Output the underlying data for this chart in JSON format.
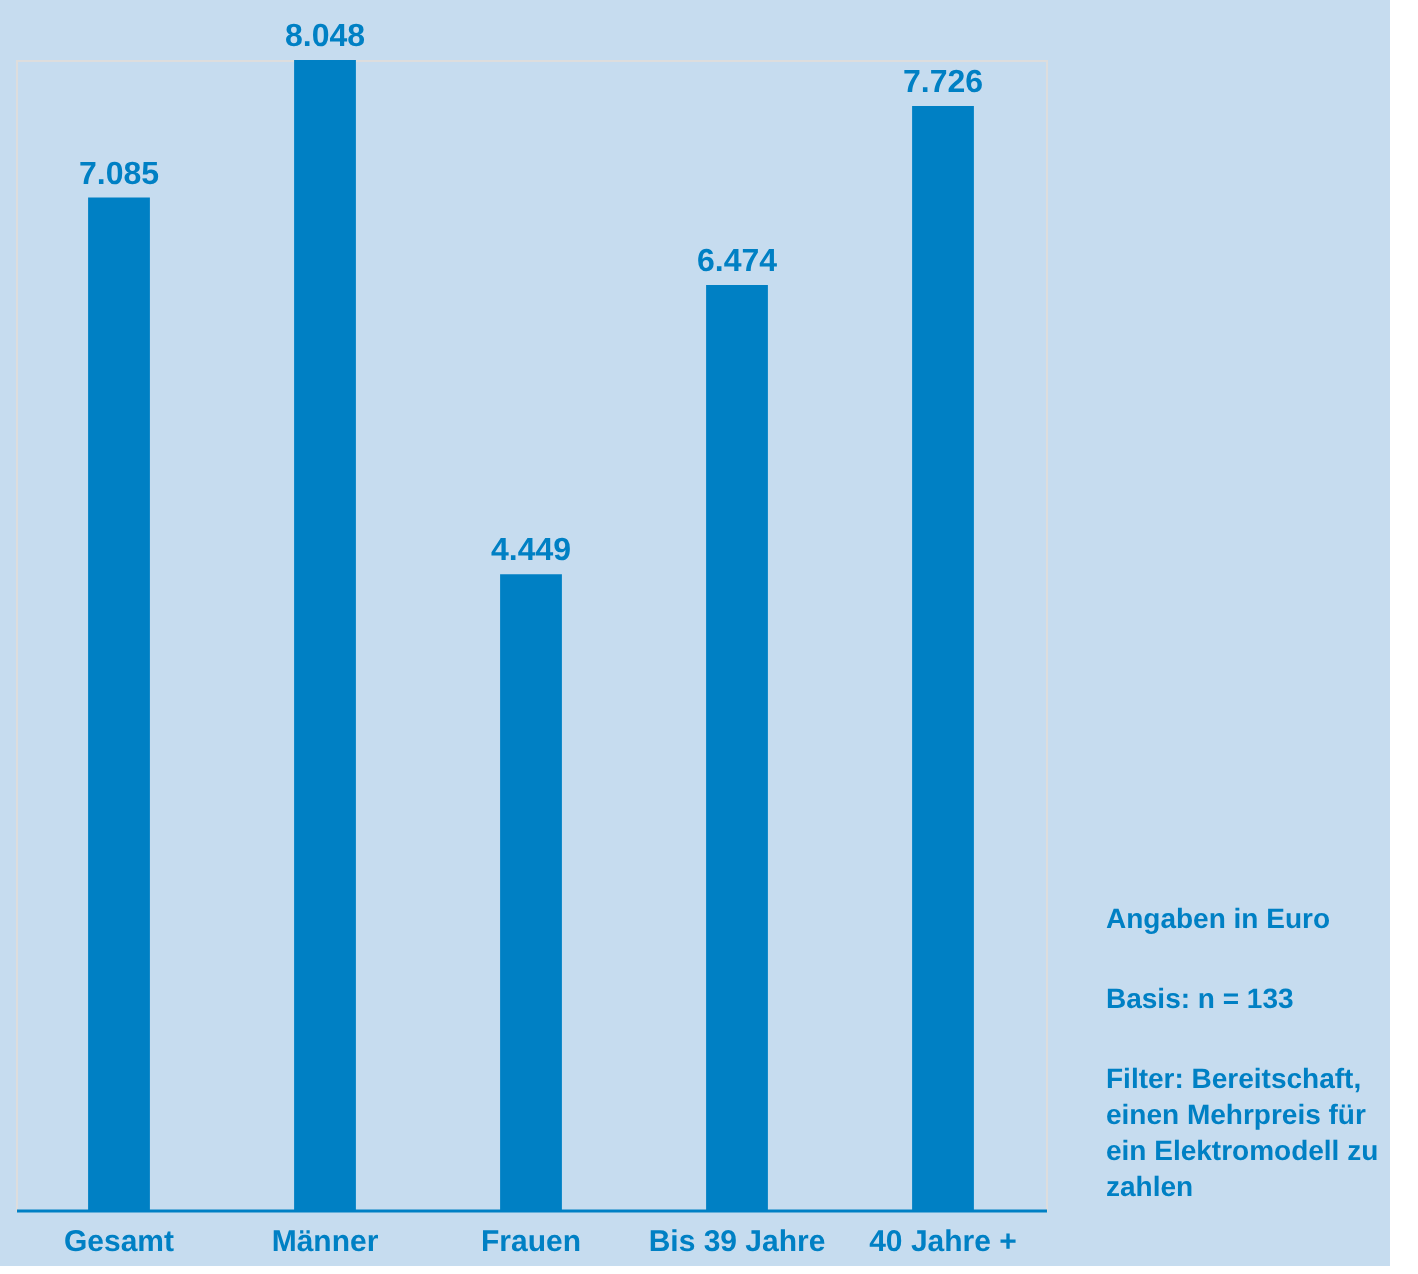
{
  "chart_data": {
    "type": "bar",
    "categories": [
      "Gesamt",
      "Männer",
      "Frauen",
      "Bis 39 Jahre",
      "40 Jahre +"
    ],
    "values": [
      7085,
      8048,
      4449,
      6474,
      7726
    ],
    "color": "#0080c4",
    "value_labels": [
      "7.085",
      "8.048",
      "4.449",
      "6.474",
      "7.726"
    ],
    "annotations": [
      "Angaben in Euro",
      "Basis: n = 133",
      "Filter: Bereitschaft, einen Mehrpreis für ein Elektromodell zu zahlen"
    ],
    "grid": false
  }
}
